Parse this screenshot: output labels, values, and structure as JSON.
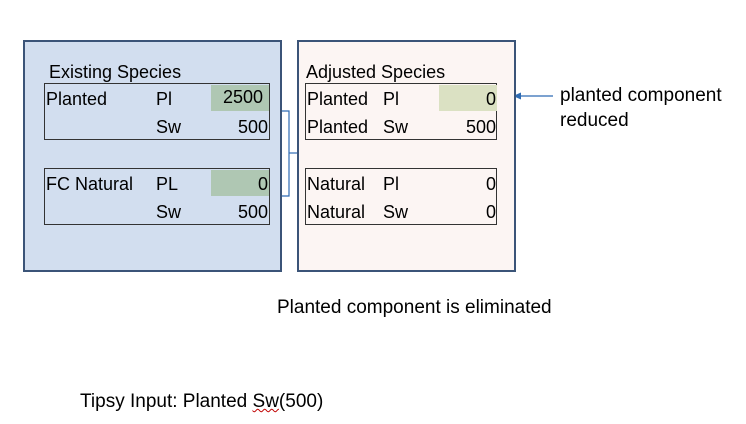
{
  "existing": {
    "title": "Existing Species",
    "planted": {
      "label": "Planted",
      "rows": [
        {
          "species": "Pl",
          "value": "2500"
        },
        {
          "species": "Sw",
          "value": "500"
        }
      ]
    },
    "natural": {
      "label": "FC Natural",
      "rows": [
        {
          "species": "PL",
          "value": "0"
        },
        {
          "species": "Sw",
          "value": "500"
        }
      ]
    }
  },
  "adjusted": {
    "title": "Adjusted Species",
    "rows": [
      {
        "component": "Planted",
        "species": "Pl",
        "value": "0"
      },
      {
        "component": "Planted",
        "species": "Sw",
        "value": "500"
      },
      {
        "component": "Natural",
        "species": "Pl",
        "value": "0"
      },
      {
        "component": "Natural",
        "species": "Sw",
        "value": "0"
      }
    ]
  },
  "annotation": {
    "line1": "planted component",
    "line2": "reduced"
  },
  "caption": "Planted component is eliminated",
  "tipsy": {
    "prefix": "Tipsy Input: Planted ",
    "squiggle": "Sw",
    "suffix": "(500)"
  },
  "colors": {
    "existing_panel_bg": "#d2deef",
    "adjusted_panel_bg": "#fcf5f3",
    "panel_border": "#3b5478",
    "highlight_existing": "#afc7b3",
    "highlight_adjusted": "#dbe1c3",
    "connector": "#2e6bb3",
    "spellcheck_squiggle": "#c00000"
  }
}
